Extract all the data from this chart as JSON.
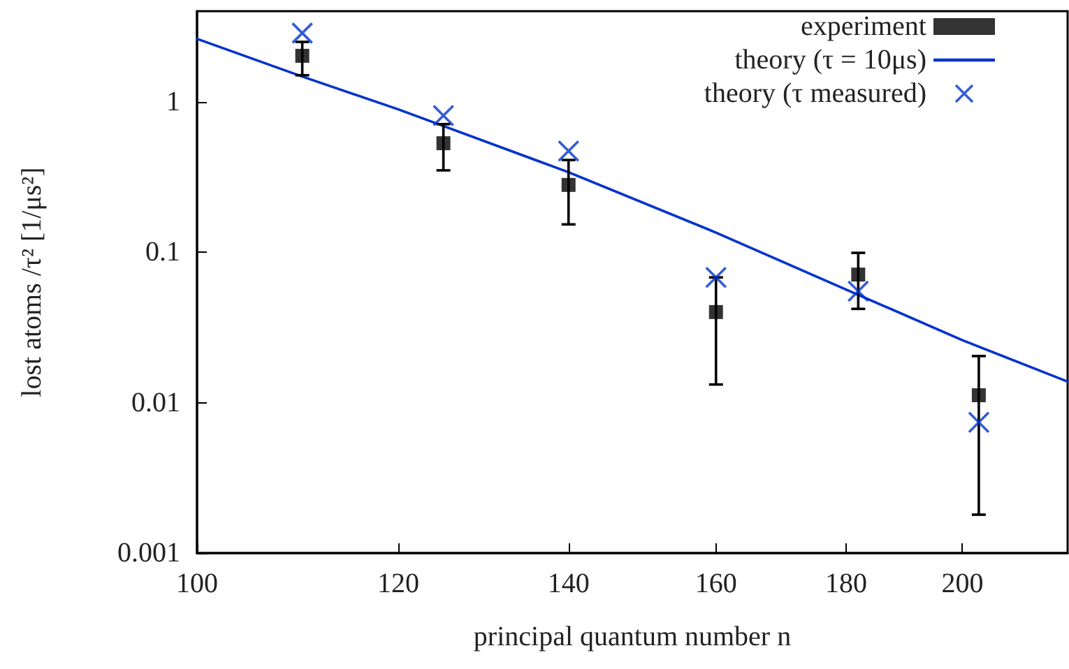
{
  "chart_data": {
    "type": "scatter",
    "xlabel": "principal quantum number n",
    "ylabel": "lost atoms /τ² [1/μs²]",
    "log": "xy",
    "xlim": [
      100,
      220
    ],
    "xticks": [
      100,
      120,
      140,
      160,
      180,
      200
    ],
    "ylim": [
      0.001,
      4
    ],
    "yticks": [
      0.001,
      0.01,
      0.1,
      1
    ],
    "grid": false,
    "legend": "top right",
    "series": [
      {
        "name": "experiment",
        "marker": "square",
        "color": "#000000",
        "x": [
          110,
          125,
          140,
          160,
          182,
          203
        ],
        "values": [
          2.02,
          0.53,
          0.28,
          0.04,
          0.071,
          0.0112
        ],
        "errors": [
          [
            1.5,
            2.5
          ],
          [
            0.35,
            0.71
          ],
          [
            0.153,
            0.41
          ],
          [
            0.0132,
            0.068
          ],
          [
            0.042,
            0.099
          ],
          [
            0.0018,
            0.0204
          ]
        ]
      },
      {
        "name": "theory (τ = 10μs)",
        "type": "line",
        "marker": "none",
        "color": "#0033cc",
        "x": [
          100,
          110,
          120,
          140,
          160,
          180,
          200,
          220
        ],
        "values": [
          2.62,
          1.47,
          0.89,
          0.34,
          0.135,
          0.0565,
          0.026,
          0.0138
        ]
      },
      {
        "name": "theory (τ measured)",
        "marker": "cross",
        "color": "#0033cc",
        "x": [
          110,
          125,
          140,
          160,
          182,
          203
        ],
        "values": [
          2.86,
          0.81,
          0.47,
          0.068,
          0.055,
          0.0074
        ]
      }
    ]
  }
}
